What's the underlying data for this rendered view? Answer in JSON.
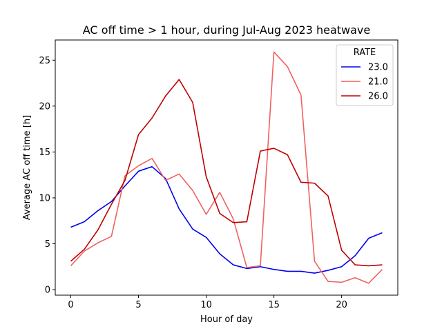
{
  "chart_data": {
    "type": "line",
    "title": "AC off time > 1 hour, during Jul-Aug 2023 heatwave",
    "xlabel": "Hour of day",
    "ylabel": "Average AC off time [h]",
    "xlim": [
      -1.15,
      24.15
    ],
    "ylim": [
      -0.6,
      27.2
    ],
    "xticks": [
      0,
      5,
      10,
      15,
      20
    ],
    "yticks": [
      0,
      5,
      10,
      15,
      20,
      25
    ],
    "grid": false,
    "legend": {
      "title": "RATE",
      "position": "top-right"
    },
    "x": [
      0,
      1,
      2,
      3,
      4,
      5,
      6,
      7,
      8,
      9,
      10,
      11,
      12,
      13,
      14,
      15,
      16,
      17,
      18,
      19,
      20,
      21,
      22,
      23
    ],
    "series": [
      {
        "name": "23.0",
        "color": "#0000ee",
        "values": [
          6.8,
          7.4,
          8.6,
          9.6,
          11.3,
          12.9,
          13.4,
          12.1,
          8.8,
          6.6,
          5.7,
          3.9,
          2.7,
          2.3,
          2.5,
          2.2,
          2.0,
          2.0,
          1.8,
          2.1,
          2.5,
          3.7,
          5.6,
          6.2
        ]
      },
      {
        "name": "21.0",
        "color": "#f06060",
        "values": [
          2.6,
          4.2,
          5.1,
          5.8,
          12.4,
          13.5,
          14.3,
          11.9,
          12.6,
          10.8,
          8.2,
          10.6,
          7.7,
          2.4,
          2.6,
          25.9,
          24.3,
          21.2,
          3.1,
          0.9,
          0.8,
          1.3,
          0.7,
          2.2
        ]
      },
      {
        "name": "26.0",
        "color": "#c00000",
        "values": [
          3.1,
          4.4,
          6.5,
          9.3,
          11.9,
          16.9,
          18.7,
          21.1,
          22.9,
          20.4,
          12.3,
          8.3,
          7.3,
          7.4,
          15.1,
          15.4,
          14.7,
          11.7,
          11.6,
          10.2,
          4.3,
          2.7,
          2.6,
          2.7
        ]
      }
    ]
  }
}
